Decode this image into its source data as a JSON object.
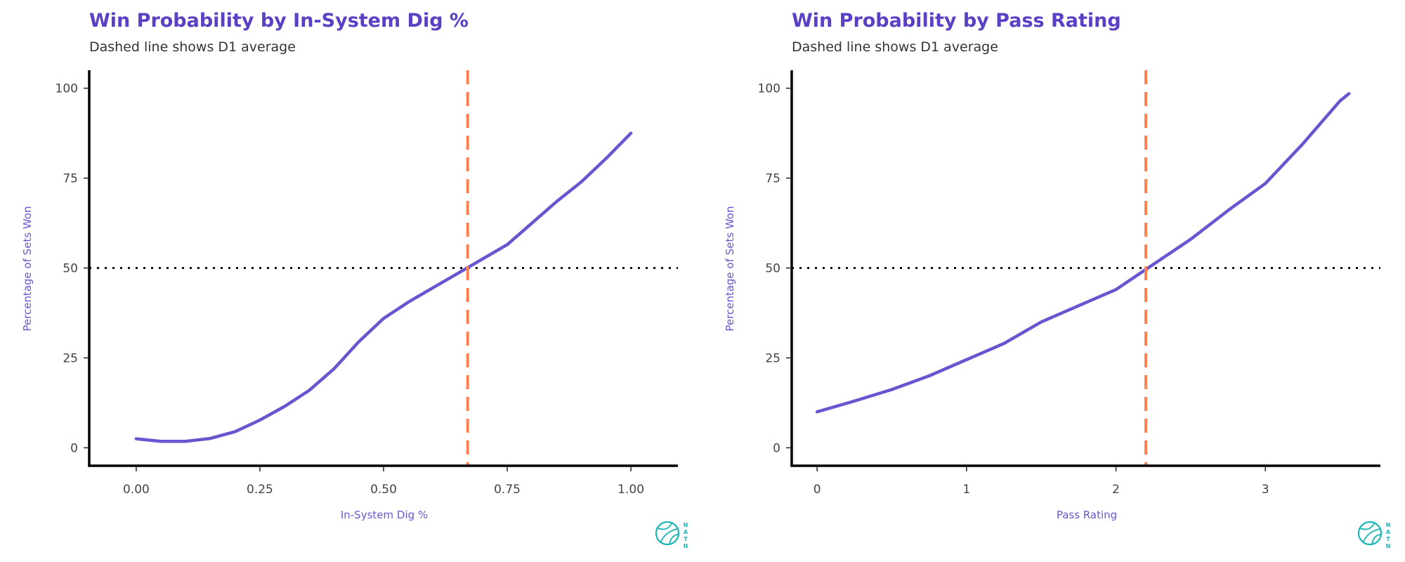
{
  "brand": {
    "letters": [
      "N",
      "A",
      "T",
      "N"
    ],
    "color": "#1ab5b5"
  },
  "colors": {
    "line": "#6a55d0",
    "title": "#5b3fc4",
    "vline": "#ff7f50",
    "hline": "#111111"
  },
  "chart_data": [
    {
      "type": "line",
      "title": "Win Probability by In-System Dig %",
      "subtitle": "Dashed line shows D1 average",
      "xlabel": "In-System Dig %",
      "ylabel": "Percentage of Sets Won",
      "xlim": [
        -0.095,
        1.095
      ],
      "ylim": [
        -5,
        105
      ],
      "xticks": [
        0,
        0.25,
        0.5,
        0.75,
        1
      ],
      "xtick_labels": [
        "0.00",
        "0.25",
        "0.50",
        "0.75",
        "1.00"
      ],
      "yticks": [
        0,
        25,
        50,
        75,
        100
      ],
      "ytick_labels": [
        "0",
        "25",
        "50",
        "75",
        "100"
      ],
      "reference_lines": {
        "vertical_x": 0.67,
        "horizontal_y": 50
      },
      "series": [
        {
          "x": [
            0,
            0.05,
            0.1,
            0.15,
            0.2,
            0.25,
            0.3,
            0.35,
            0.4,
            0.45,
            0.5,
            0.55,
            0.6,
            0.65,
            0.7,
            0.75,
            0.8,
            0.85,
            0.9,
            0.95,
            1.0
          ],
          "y": [
            2.5,
            1.8,
            1.8,
            2.6,
            4.5,
            7.7,
            11.5,
            16,
            22,
            29.5,
            36,
            40.5,
            44.5,
            48.5,
            52.5,
            56.5,
            62.5,
            68.5,
            74,
            80.5,
            87.5
          ]
        }
      ]
    },
    {
      "type": "line",
      "title": "Win Probability by Pass Rating",
      "subtitle": "Dashed line shows D1 average",
      "xlabel": "Pass Rating",
      "ylabel": "Percentage of Sets Won",
      "xlim": [
        -0.17,
        3.77
      ],
      "ylim": [
        -5,
        105
      ],
      "xticks": [
        0,
        1,
        2,
        3
      ],
      "xtick_labels": [
        "0",
        "1",
        "2",
        "3"
      ],
      "yticks": [
        0,
        25,
        50,
        75,
        100
      ],
      "ytick_labels": [
        "0",
        "25",
        "50",
        "75",
        "100"
      ],
      "reference_lines": {
        "vertical_x": 2.2,
        "horizontal_y": 50
      },
      "series": [
        {
          "x": [
            0,
            0.25,
            0.5,
            0.75,
            1.0,
            1.25,
            1.5,
            1.75,
            2.0,
            2.25,
            2.5,
            2.75,
            3.0,
            3.25,
            3.5,
            3.56
          ],
          "y": [
            10,
            13,
            16.2,
            20,
            24.5,
            29,
            35,
            39.5,
            44,
            51,
            58,
            66,
            73.5,
            84.5,
            96.5,
            98.5
          ]
        }
      ]
    }
  ]
}
